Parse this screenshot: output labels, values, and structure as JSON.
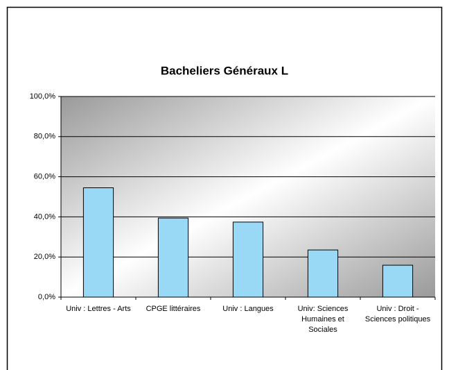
{
  "chart_data": {
    "type": "bar",
    "title": "Bacheliers Généraux L",
    "categories": [
      "Univ : Lettres - Arts",
      "CPGE littéraires",
      "Univ : Langues",
      "Univ: Sciences Humaines et Sociales",
      "Univ : Droit - Sciences politiques"
    ],
    "values": [
      54.5,
      39.4,
      37.4,
      23.5,
      15.9
    ],
    "color": "#99d9f5",
    "ylim": [
      0,
      100
    ],
    "yticks": [
      {
        "value": 0,
        "label": "0,0%"
      },
      {
        "value": 20,
        "label": "20,0%"
      },
      {
        "value": 40,
        "label": "40,0%"
      },
      {
        "value": 60,
        "label": "60,0%"
      },
      {
        "value": 80,
        "label": "80,0%"
      },
      {
        "value": 100,
        "label": "100,0%"
      }
    ],
    "grid": true
  }
}
